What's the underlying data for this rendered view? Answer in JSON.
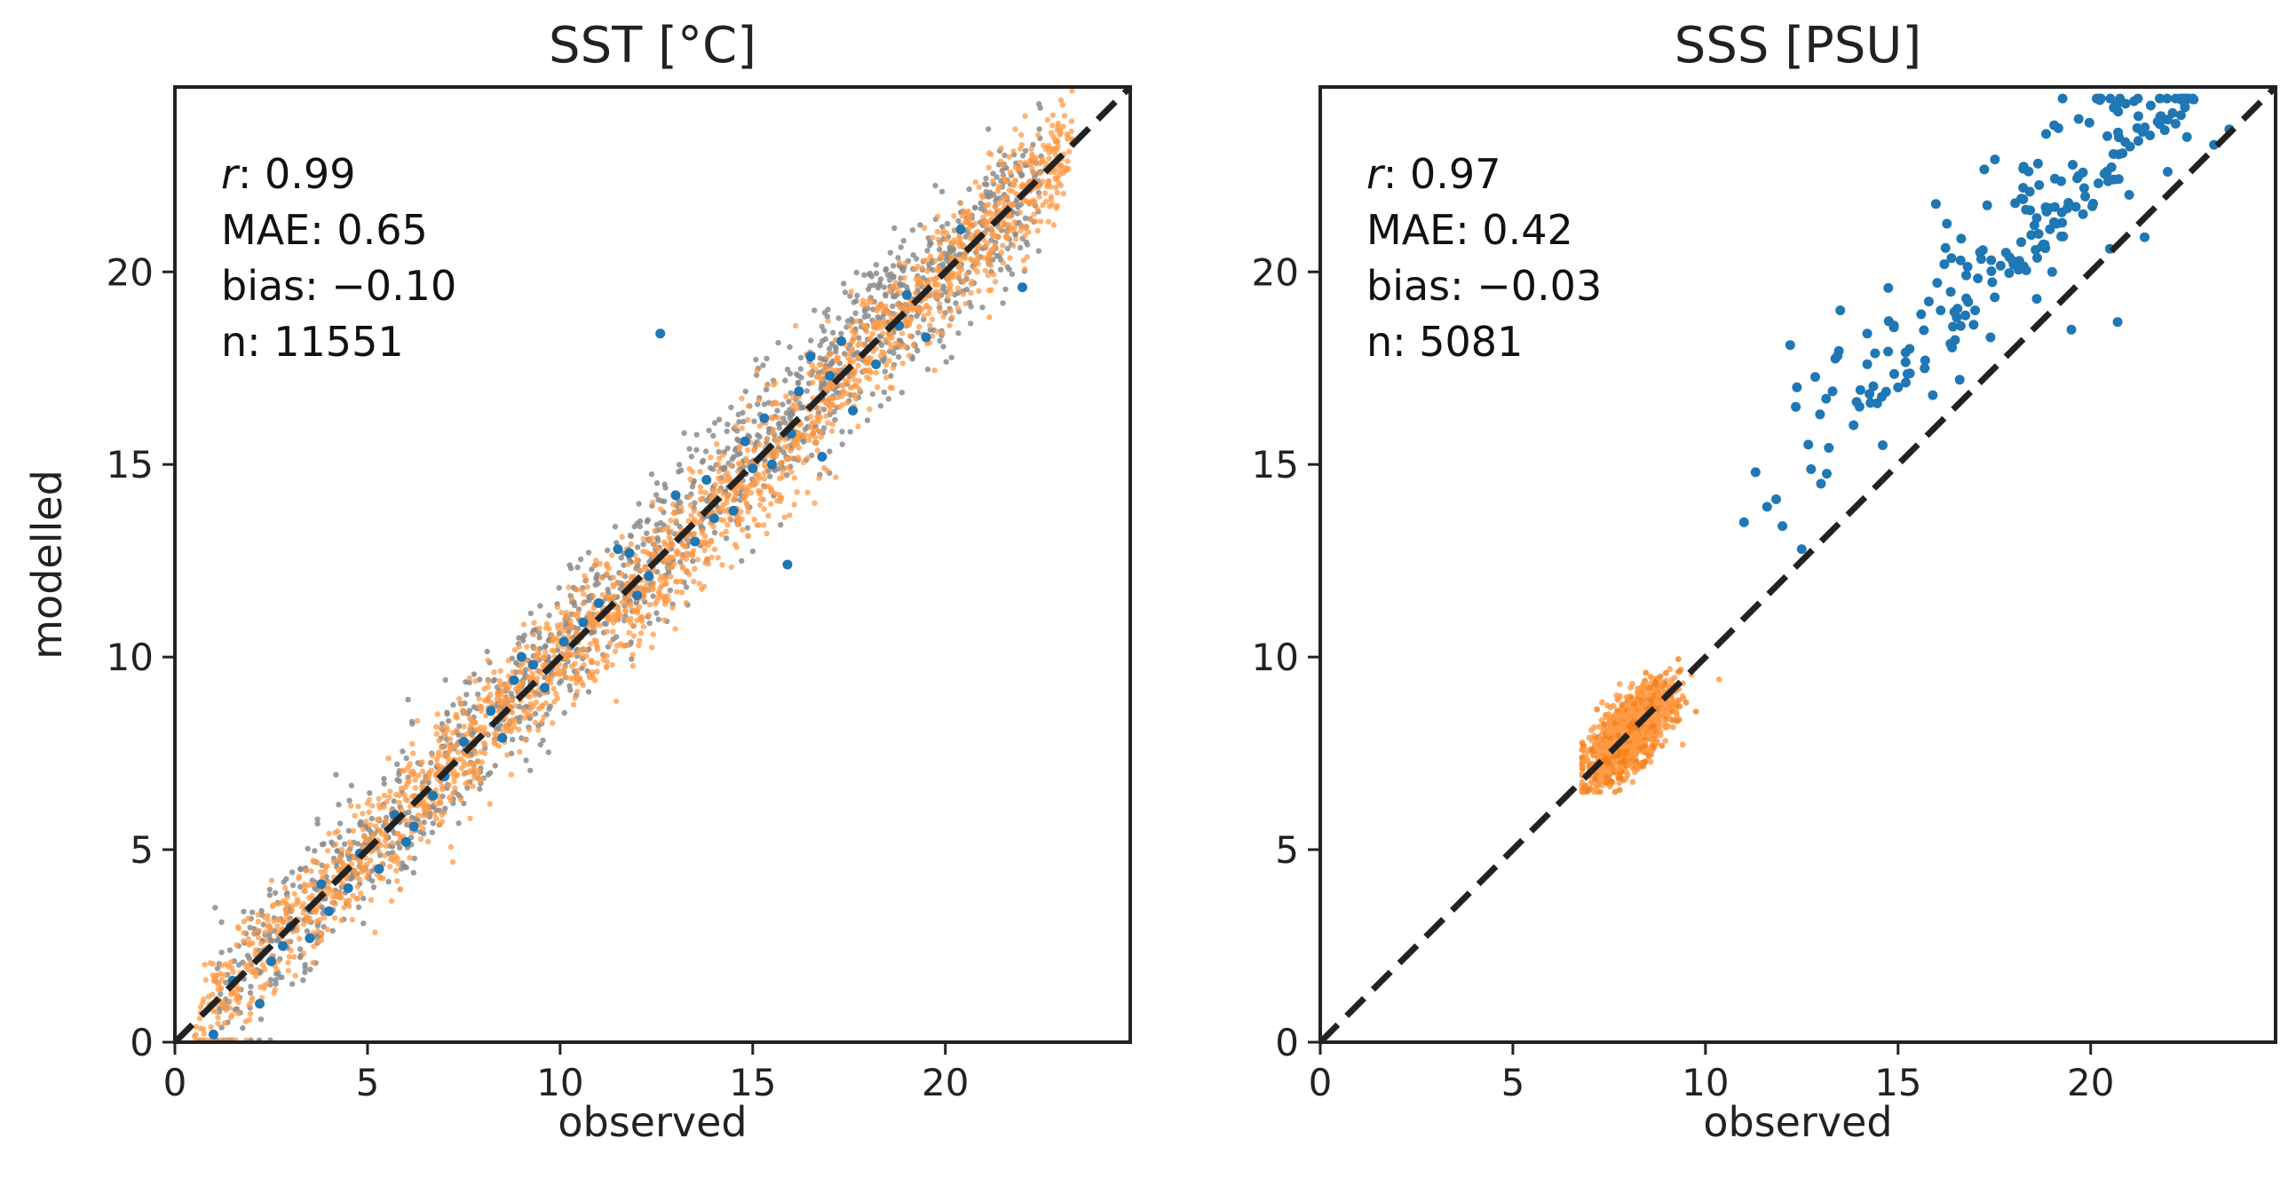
{
  "colors": {
    "grey": "#8c8c8c",
    "orange": "#ff9a45",
    "orange_dense": "#f47f1c",
    "blue": "#1f77b4",
    "axis": "#222222"
  },
  "chart_data": [
    {
      "type": "scatter",
      "title": "SST [°C]",
      "xlabel": "observed",
      "ylabel": "modelled",
      "xlim": [
        0,
        24.8
      ],
      "ylim": [
        0,
        24.8
      ],
      "xticks": [
        0,
        5,
        10,
        15,
        20
      ],
      "yticks": [
        0,
        5,
        10,
        15,
        20
      ],
      "reference_line": "1:1 dashed",
      "stats": {
        "r_label": "r",
        "r_value": ": 0.99",
        "mae": "MAE: 0.65",
        "bias": "bias: −0.10",
        "n": "n: 11551"
      },
      "series": [
        {
          "name": "grey",
          "color": "#8c8c8c",
          "x_range": [
            1.0,
            22.5
          ],
          "n_drawn": 1600,
          "spread": 0.9
        },
        {
          "name": "orange",
          "color": "#ff9a45",
          "x_range": [
            0.5,
            23.3
          ],
          "n_drawn": 2200,
          "spread": 0.75
        },
        {
          "name": "blue",
          "color": "#1f77b4",
          "n_drawn": 55,
          "points": [
            [
              12.6,
              18.4
            ],
            [
              22.0,
              19.6
            ],
            [
              14.0,
              13.6
            ],
            [
              15.5,
              15.0
            ],
            [
              17.0,
              17.3
            ],
            [
              13.0,
              14.2
            ],
            [
              15.9,
              12.4
            ],
            [
              16.8,
              15.2
            ],
            [
              11.5,
              12.8
            ],
            [
              9.0,
              10.0
            ],
            [
              7.5,
              7.8
            ],
            [
              6.0,
              5.2
            ],
            [
              5.3,
              4.5
            ],
            [
              4.0,
              3.4
            ],
            [
              3.5,
              2.7
            ],
            [
              3.0,
              3.0
            ],
            [
              1.5,
              1.6
            ],
            [
              2.2,
              1.0
            ],
            [
              1.0,
              0.2
            ],
            [
              18.2,
              17.6
            ],
            [
              19.5,
              18.3
            ],
            [
              20.4,
              21.1
            ],
            [
              16.2,
              16.9
            ],
            [
              14.5,
              13.8
            ],
            [
              12.0,
              11.6
            ],
            [
              10.6,
              10.9
            ],
            [
              8.2,
              8.6
            ],
            [
              6.7,
              6.4
            ],
            [
              4.8,
              4.9
            ],
            [
              2.8,
              2.5
            ],
            [
              17.6,
              16.4
            ],
            [
              15.0,
              14.9
            ],
            [
              13.5,
              13.0
            ],
            [
              11.0,
              11.4
            ],
            [
              9.6,
              9.2
            ],
            [
              8.8,
              9.4
            ],
            [
              5.7,
              5.9
            ],
            [
              3.8,
              4.1
            ],
            [
              16.5,
              17.8
            ],
            [
              18.8,
              18.6
            ],
            [
              14.8,
              15.6
            ],
            [
              12.3,
              12.1
            ],
            [
              10.1,
              10.4
            ],
            [
              7.0,
              6.9
            ],
            [
              4.5,
              4.0
            ],
            [
              17.3,
              18.2
            ],
            [
              19.0,
              19.4
            ],
            [
              13.8,
              14.6
            ],
            [
              11.8,
              12.7
            ],
            [
              9.3,
              9.8
            ],
            [
              6.2,
              5.6
            ],
            [
              2.5,
              2.1
            ],
            [
              16.0,
              15.8
            ],
            [
              15.3,
              16.2
            ],
            [
              8.5,
              7.9
            ]
          ]
        }
      ]
    },
    {
      "type": "scatter",
      "title": "SSS [PSU]",
      "xlabel": "observed",
      "ylabel": "",
      "xlim": [
        0,
        24.8
      ],
      "ylim": [
        0,
        24.8
      ],
      "xticks": [
        0,
        5,
        10,
        15,
        20
      ],
      "yticks": [
        0,
        5,
        10,
        15,
        20
      ],
      "reference_line": "1:1 dashed",
      "stats": {
        "r_label": "r",
        "r_value": ": 0.97",
        "mae": "MAE: 0.42",
        "bias": "bias: −0.03",
        "n": "n: 5081"
      },
      "series": [
        {
          "name": "orange",
          "color": "#ff9a45",
          "center": [
            8.0,
            8.0
          ],
          "x_range": [
            6.8,
            11.0
          ],
          "y_range": [
            6.5,
            10.6
          ],
          "n_drawn": 1400
        },
        {
          "name": "blue",
          "color": "#1f77b4",
          "x_range": [
            11.0,
            23.8
          ],
          "n_drawn": 230,
          "points": [
            [
              12.2,
              18.1
            ],
            [
              11.3,
              14.8
            ],
            [
              11.0,
              13.5
            ],
            [
              11.6,
              13.9
            ],
            [
              12.0,
              13.4
            ],
            [
              12.5,
              12.8
            ],
            [
              13.0,
              14.5
            ],
            [
              13.3,
              16.9
            ],
            [
              13.5,
              19.0
            ],
            [
              14.0,
              16.5
            ],
            [
              14.2,
              18.4
            ],
            [
              14.6,
              15.5
            ],
            [
              15.0,
              17.0
            ],
            [
              15.3,
              18.0
            ],
            [
              15.6,
              18.9
            ],
            [
              15.9,
              16.8
            ],
            [
              16.2,
              20.2
            ],
            [
              16.6,
              17.2
            ],
            [
              17.0,
              19.0
            ],
            [
              17.4,
              18.3
            ],
            [
              17.8,
              20.5
            ],
            [
              18.2,
              21.9
            ],
            [
              18.6,
              19.3
            ],
            [
              19.0,
              20.0
            ],
            [
              19.5,
              18.5
            ],
            [
              19.8,
              21.5
            ],
            [
              20.2,
              22.3
            ],
            [
              20.5,
              20.6
            ],
            [
              20.7,
              18.7
            ],
            [
              21.0,
              22.0
            ],
            [
              21.4,
              20.9
            ],
            [
              22.0,
              22.6
            ],
            [
              22.5,
              23.5
            ],
            [
              23.2,
              23.3
            ],
            [
              23.6,
              23.7
            ]
          ]
        }
      ]
    }
  ]
}
